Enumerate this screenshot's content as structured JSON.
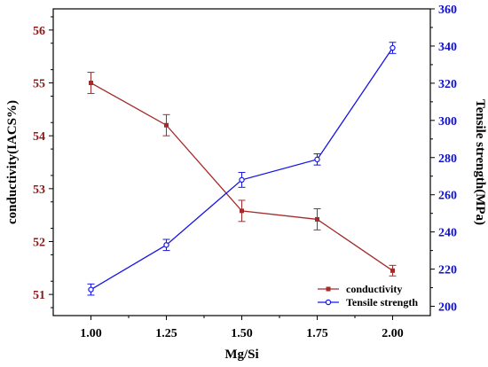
{
  "colors": {
    "left_axis": "#8B1A1A",
    "right_axis": "#1010D0",
    "conductivity_series": "#A52A2A",
    "tensile_series": "#1515E6",
    "frame": "#000000"
  },
  "chart_data": {
    "type": "line",
    "title": "",
    "xlabel": "Mg/Si",
    "ylabel_left": "conductivity(IACS%)",
    "ylabel_right": "Tensile strength(MPa)",
    "x": [
      1.0,
      1.25,
      1.5,
      1.75,
      2.0
    ],
    "x_ticks": [
      "1.00",
      "1.25",
      "1.50",
      "1.75",
      "2.00"
    ],
    "xlim": [
      0.875,
      2.125
    ],
    "ylim_left": [
      50.6,
      56.4
    ],
    "yticks_left": [
      "51",
      "52",
      "53",
      "54",
      "55",
      "56"
    ],
    "ylim_right": [
      195,
      360
    ],
    "yticks_right": [
      "200",
      "220",
      "240",
      "260",
      "280",
      "300",
      "320",
      "340",
      "360"
    ],
    "grid": false,
    "legend_position": "bottom-right",
    "series": [
      {
        "name": "conductivity",
        "axis": "left",
        "marker": "square",
        "values": [
          55.0,
          54.2,
          52.58,
          52.42,
          51.45
        ],
        "errors": [
          0.2,
          0.2,
          0.2,
          0.2,
          0.1
        ]
      },
      {
        "name": "Tensile strength",
        "axis": "right",
        "marker": "circle",
        "values": [
          209,
          233,
          268,
          279,
          339
        ],
        "errors": [
          3,
          3,
          4,
          3,
          3
        ]
      }
    ]
  }
}
